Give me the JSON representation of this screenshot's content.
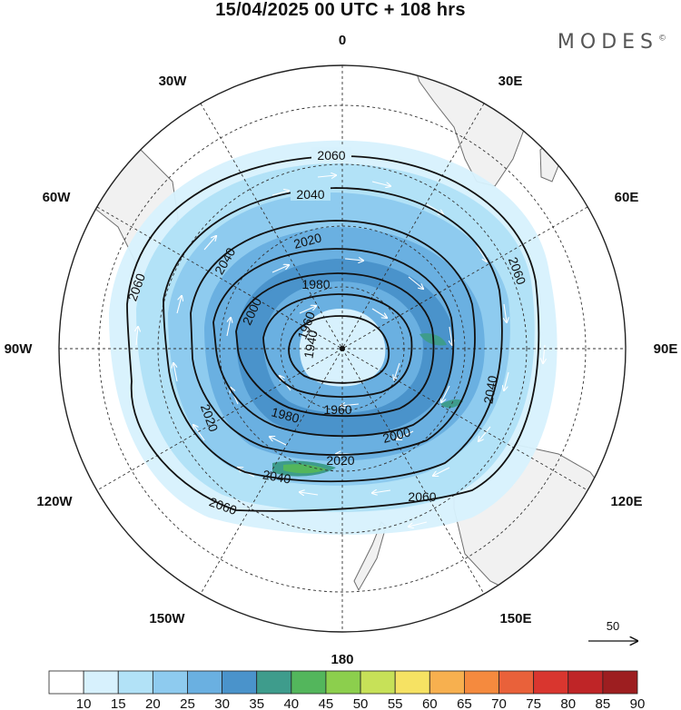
{
  "title": "15/04/2025  00 UTC  + 108 hrs",
  "brand": "MODES",
  "brand_mark": "©",
  "map": {
    "projection": "south-polar-stereographic",
    "longitude_labels": {
      "top": "0",
      "top_right": "30E",
      "right_upper": "60E",
      "right": "90E",
      "right_lower": "120E",
      "bottom_right": "150E",
      "bottom": "180",
      "bottom_left": "150W",
      "left_lower": "120W",
      "left": "90W",
      "left_upper": "60W",
      "top_left": "30W"
    },
    "contour_labels": [
      "2060",
      "2040",
      "2040",
      "2020",
      "2060",
      "2000",
      "1980",
      "1960",
      "1940",
      "1960",
      "1980",
      "2000",
      "2020",
      "2040",
      "2060",
      "2020",
      "2040",
      "2060"
    ],
    "vector_reference": {
      "label": "50"
    },
    "colors": {
      "land": "#f1f1f1",
      "coast": "#6e6e6e",
      "contour": "#111111",
      "wind_arrow": "#ffffff"
    }
  },
  "colorbar": {
    "ticks": [
      "10",
      "15",
      "20",
      "25",
      "30",
      "35",
      "40",
      "45",
      "50",
      "55",
      "60",
      "65",
      "70",
      "75",
      "80",
      "85",
      "90"
    ],
    "colors": [
      "#ffffff",
      "#d7f1fd",
      "#b2e2f7",
      "#8ecbef",
      "#6ab0e1",
      "#4a93cb",
      "#3e9c8c",
      "#53b65c",
      "#8ccf4d",
      "#c7e158",
      "#f6e263",
      "#f7b04f",
      "#f58a3e",
      "#e9613a",
      "#d9362f",
      "#bf2527",
      "#9d1e20"
    ]
  }
}
